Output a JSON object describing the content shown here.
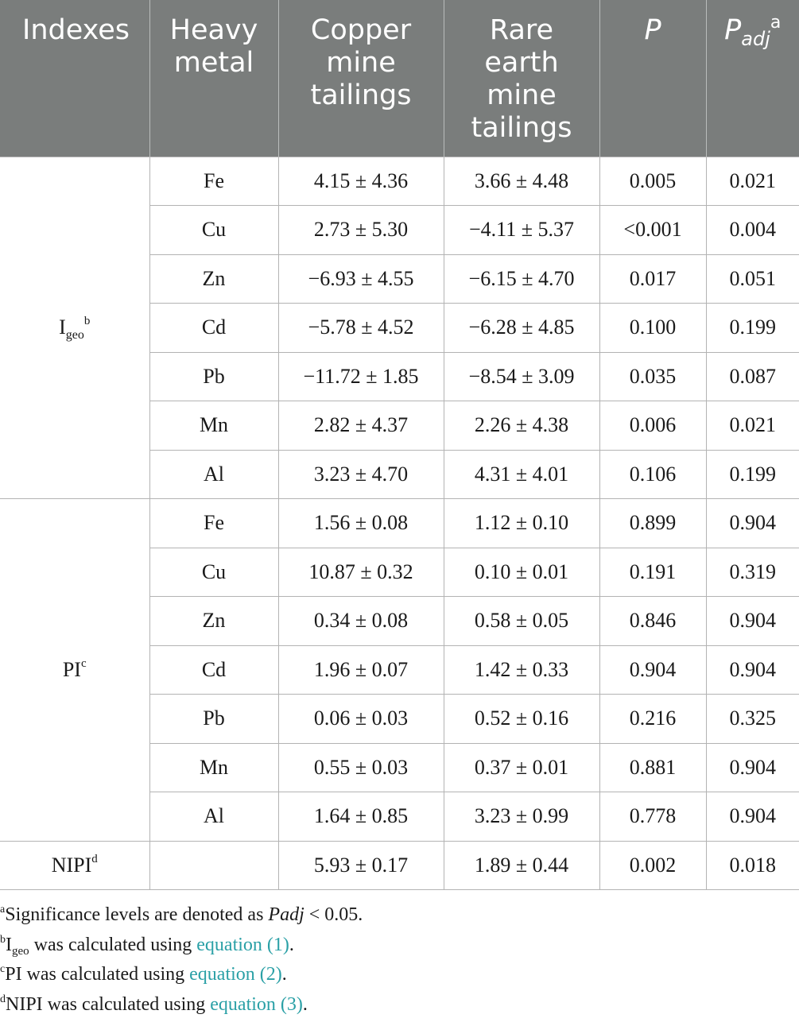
{
  "header": {
    "indexes": "Indexes",
    "heavy_metal_line1": "Heavy",
    "heavy_metal_line2": "metal",
    "copper_line1": "Copper",
    "copper_line2": "mine",
    "copper_line3": "tailings",
    "rare_line1": "Rare",
    "rare_line2": "earth",
    "rare_line3": "mine",
    "rare_line4": "tailings",
    "p": "P",
    "padj_main": "P",
    "padj_sub": "adj",
    "padj_sup": "a"
  },
  "groups": {
    "igeo": {
      "main": "I",
      "sub": "geo",
      "sup": "b"
    },
    "pi": {
      "main": "PI",
      "sup": "c"
    },
    "nipi": {
      "main": "NIPI",
      "sup": "d"
    }
  },
  "igeo_rows": [
    {
      "metal": "Fe",
      "copper": "4.15 ± 4.36",
      "rare": "3.66 ± 4.48",
      "p": "0.005",
      "padj": "0.021"
    },
    {
      "metal": "Cu",
      "copper": "2.73 ± 5.30",
      "rare": "−4.11 ± 5.37",
      "p": "<0.001",
      "padj": "0.004"
    },
    {
      "metal": "Zn",
      "copper": "−6.93 ± 4.55",
      "rare": "−6.15 ± 4.70",
      "p": "0.017",
      "padj": "0.051"
    },
    {
      "metal": "Cd",
      "copper": "−5.78 ± 4.52",
      "rare": "−6.28 ± 4.85",
      "p": "0.100",
      "padj": "0.199"
    },
    {
      "metal": "Pb",
      "copper": "−11.72 ± 1.85",
      "rare": "−8.54 ± 3.09",
      "p": "0.035",
      "padj": "0.087"
    },
    {
      "metal": "Mn",
      "copper": "2.82 ± 4.37",
      "rare": "2.26 ± 4.38",
      "p": "0.006",
      "padj": "0.021"
    },
    {
      "metal": "Al",
      "copper": "3.23 ± 4.70",
      "rare": "4.31 ± 4.01",
      "p": "0.106",
      "padj": "0.199"
    }
  ],
  "pi_rows": [
    {
      "metal": "Fe",
      "copper": "1.56 ± 0.08",
      "rare": "1.12 ± 0.10",
      "p": "0.899",
      "padj": "0.904"
    },
    {
      "metal": "Cu",
      "copper": "10.87 ± 0.32",
      "rare": "0.10 ± 0.01",
      "p": "0.191",
      "padj": "0.319"
    },
    {
      "metal": "Zn",
      "copper": "0.34 ± 0.08",
      "rare": "0.58 ± 0.05",
      "p": "0.846",
      "padj": "0.904"
    },
    {
      "metal": "Cd",
      "copper": "1.96 ± 0.07",
      "rare": "1.42 ± 0.33",
      "p": "0.904",
      "padj": "0.904"
    },
    {
      "metal": "Pb",
      "copper": "0.06 ± 0.03",
      "rare": "0.52 ± 0.16",
      "p": "0.216",
      "padj": "0.325"
    },
    {
      "metal": "Mn",
      "copper": "0.55 ± 0.03",
      "rare": "0.37 ± 0.01",
      "p": "0.881",
      "padj": "0.904"
    },
    {
      "metal": "Al",
      "copper": "1.64 ± 0.85",
      "rare": "3.23 ± 0.99",
      "p": "0.778",
      "padj": "0.904"
    }
  ],
  "nipi_row": {
    "metal": "",
    "copper": "5.93 ± 0.17",
    "rare": "1.89 ± 0.44",
    "p": "0.002",
    "padj": "0.018"
  },
  "footnotes": {
    "a": {
      "mark": "a",
      "text": "Significance levels are denoted as ",
      "italic": "Padj",
      "tail": " < 0.05."
    },
    "b": {
      "mark": "b",
      "main": "I",
      "sub": "geo",
      "text": " was calculated using ",
      "link": "equation (1)",
      "tail": "."
    },
    "c": {
      "mark": "c",
      "text": "PI was calculated using ",
      "link": "equation (2)",
      "tail": "."
    },
    "d": {
      "mark": "d",
      "text": "NIPI was calculated using ",
      "link": "equation (3)",
      "tail": "."
    }
  },
  "colors": {
    "header_bg": "#7a7d7c",
    "header_text": "#ffffff",
    "link": "#2aa0a6",
    "border": "#b3b3b3"
  }
}
